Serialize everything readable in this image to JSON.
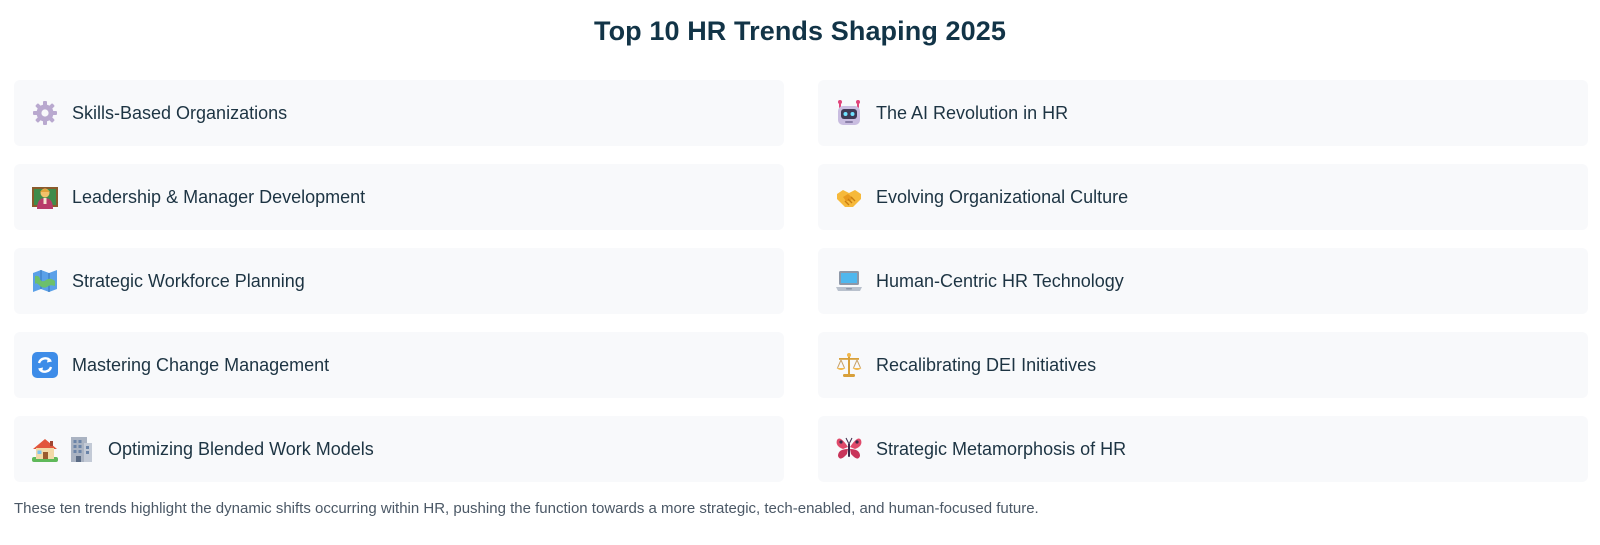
{
  "title": "Top 10 HR Trends Shaping 2025",
  "trends": [
    {
      "label": "Skills-Based Organizations",
      "icons": [
        "gear-icon"
      ]
    },
    {
      "label": "The AI Revolution in HR",
      "icons": [
        "robot-icon"
      ]
    },
    {
      "label": "Leadership & Manager Development",
      "icons": [
        "teacher-icon"
      ]
    },
    {
      "label": "Evolving Organizational Culture",
      "icons": [
        "handshake-icon"
      ]
    },
    {
      "label": "Strategic Workforce Planning",
      "icons": [
        "map-icon"
      ]
    },
    {
      "label": "Human-Centric HR Technology",
      "icons": [
        "laptop-icon"
      ]
    },
    {
      "label": "Mastering Change Management",
      "icons": [
        "arrows-cycle-icon"
      ]
    },
    {
      "label": "Recalibrating DEI Initiatives",
      "icons": [
        "balance-scale-icon"
      ]
    },
    {
      "label": "Optimizing Blended Work Models",
      "icons": [
        "house-icon",
        "office-building-icon"
      ]
    },
    {
      "label": "Strategic Metamorphosis of HR",
      "icons": [
        "butterfly-icon"
      ]
    }
  ],
  "footer": "These ten trends highlight the dynamic shifts occurring within HR, pushing the function towards a more strategic, tech-enabled, and human-focused future."
}
